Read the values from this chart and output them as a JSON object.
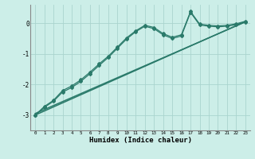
{
  "xlabel": "Humidex (Indice chaleur)",
  "background_color": "#cceee8",
  "grid_color": "#aad4ce",
  "line_color": "#2a7a6a",
  "xlim": [
    -0.5,
    23.5
  ],
  "ylim": [
    -3.5,
    0.6
  ],
  "xticks": [
    0,
    1,
    2,
    3,
    4,
    5,
    6,
    7,
    8,
    9,
    10,
    11,
    12,
    13,
    14,
    15,
    16,
    17,
    18,
    19,
    20,
    21,
    22,
    23
  ],
  "yticks": [
    0,
    -1,
    -2,
    -3
  ],
  "x": [
    0,
    1,
    2,
    3,
    4,
    5,
    6,
    7,
    8,
    9,
    10,
    11,
    12,
    13,
    14,
    15,
    16,
    17,
    18,
    19,
    20,
    21,
    22,
    23
  ],
  "line1": [
    -3.0,
    -2.75,
    -2.55,
    -2.25,
    -2.1,
    -1.9,
    -1.65,
    -1.38,
    -1.12,
    -0.82,
    -0.52,
    -0.28,
    -0.1,
    -0.18,
    -0.38,
    -0.5,
    -0.42,
    0.35,
    -0.06,
    -0.1,
    -0.12,
    -0.1,
    -0.05,
    0.04
  ],
  "line2": [
    -3.0,
    -2.72,
    -2.52,
    -2.2,
    -2.05,
    -1.85,
    -1.6,
    -1.33,
    -1.08,
    -0.78,
    -0.48,
    -0.25,
    -0.07,
    -0.14,
    -0.34,
    -0.46,
    -0.38,
    0.38,
    -0.03,
    -0.07,
    -0.09,
    -0.07,
    -0.02,
    0.06
  ],
  "trend1": [
    -3.0,
    0.05
  ],
  "trend2": [
    -2.95,
    0.04
  ],
  "trend_x": [
    0,
    23
  ]
}
